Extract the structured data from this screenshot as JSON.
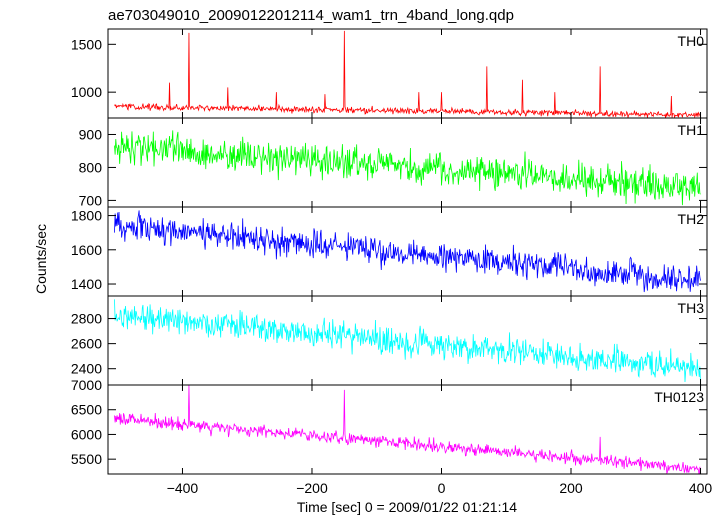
{
  "chart_data": {
    "type": "line",
    "title": "ae703049010_20090122012114_wam1_trn_4band_long.qdp",
    "xlabel": "Time [sec] 0 = 2009/01/22 01:21:14",
    "ylabel": "Counts/sec",
    "xlim": [
      -515,
      410
    ],
    "x_ticks": [
      -400,
      -200,
      0,
      200,
      400
    ],
    "x_tick_labels": [
      "−400",
      "−200",
      "0",
      "200",
      "400"
    ],
    "x_step": 1,
    "grid": false,
    "panels": [
      {
        "name": "TH0",
        "color": "#ff0000",
        "ylim": [
          730,
          1660
        ],
        "y_ticks": [
          1500,
          1000
        ],
        "y_tick_labels": [
          "1500",
          "1000"
        ],
        "trend": [
          [
            -505,
            850
          ],
          [
            400,
            760
          ]
        ],
        "noise": 28,
        "spikes": [
          [
            -420,
            1100
          ],
          [
            -390,
            1620
          ],
          [
            -330,
            1050
          ],
          [
            -255,
            1000
          ],
          [
            -180,
            980
          ],
          [
            -150,
            1640
          ],
          [
            -35,
            1000
          ],
          [
            0,
            1000
          ],
          [
            70,
            1270
          ],
          [
            125,
            1130
          ],
          [
            175,
            1000
          ],
          [
            245,
            1270
          ],
          [
            355,
            960
          ]
        ]
      },
      {
        "name": "TH1",
        "color": "#00ff00",
        "ylim": [
          680,
          950
        ],
        "y_ticks": [
          900,
          800,
          700
        ],
        "y_tick_labels": [
          "900",
          "800",
          "700"
        ],
        "trend": [
          [
            -505,
            865
          ],
          [
            400,
            740
          ]
        ],
        "noise": 45,
        "spikes": []
      },
      {
        "name": "TH2",
        "color": "#0000ff",
        "ylim": [
          1330,
          1850
        ],
        "y_ticks": [
          1800,
          1600,
          1400
        ],
        "y_tick_labels": [
          "1800",
          "1600",
          "1400"
        ],
        "trend": [
          [
            -505,
            1740
          ],
          [
            400,
            1420
          ]
        ],
        "noise": 75,
        "spikes": []
      },
      {
        "name": "TH3",
        "color": "#00ffff",
        "ylim": [
          2270,
          2980
        ],
        "y_ticks": [
          2800,
          2600,
          2400
        ],
        "y_tick_labels": [
          "2800",
          "2600",
          "2400"
        ],
        "trend": [
          [
            -505,
            2830
          ],
          [
            400,
            2400
          ]
        ],
        "noise": 100,
        "spikes": []
      },
      {
        "name": "TH0123",
        "color": "#ff00ff",
        "ylim": [
          5200,
          7000
        ],
        "y_ticks": [
          7000,
          6500,
          6000,
          5500
        ],
        "y_tick_labels": [
          "7000",
          "6500",
          "6000",
          "5500"
        ],
        "trend": [
          [
            -505,
            6320
          ],
          [
            400,
            5300
          ]
        ],
        "noise": 110,
        "spikes": [
          [
            -390,
            7000
          ],
          [
            -150,
            6900
          ],
          [
            -35,
            5900
          ],
          [
            70,
            5800
          ],
          [
            245,
            5950
          ]
        ]
      }
    ]
  }
}
